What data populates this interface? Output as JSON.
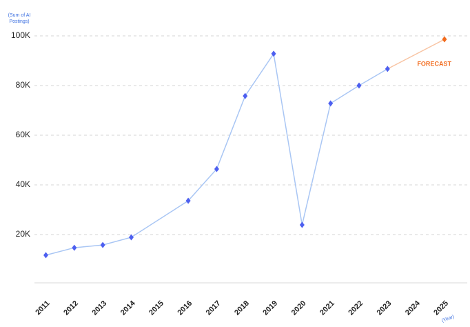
{
  "chart_data": {
    "type": "line",
    "y_label": "(Sum of AI Postings)",
    "x_label": "(Year)",
    "series": [
      {
        "color": "#a9c6f4",
        "marker_color": "#4d5ff0",
        "x": [
          2011,
          2012,
          2013,
          2014,
          2016,
          2017,
          2018,
          2019,
          2020,
          2021,
          2022,
          2023
        ],
        "values": [
          11700,
          14700,
          15800,
          18900,
          33600,
          46400,
          75800,
          92800,
          23900,
          72800,
          80000,
          86700
        ]
      },
      {
        "name": "FORECAST",
        "color": "#f8c4a3",
        "marker_color": "#f26b1d",
        "x": [
          2025
        ],
        "values": [
          98600
        ]
      }
    ],
    "xlim": [
      2010.6,
      2025.8
    ],
    "xticks": [
      2011,
      2012,
      2013,
      2014,
      2015,
      2016,
      2017,
      2018,
      2019,
      2020,
      2021,
      2022,
      2023,
      2024,
      2025
    ],
    "ylim": [
      0,
      100000
    ],
    "yticks": [
      {
        "value": 20000,
        "label": "20K"
      },
      {
        "value": 40000,
        "label": "40K"
      },
      {
        "value": 60000,
        "label": "60K"
      },
      {
        "value": 80000,
        "label": "80K"
      },
      {
        "value": 100000,
        "label": "100K"
      }
    ],
    "grid": true
  }
}
